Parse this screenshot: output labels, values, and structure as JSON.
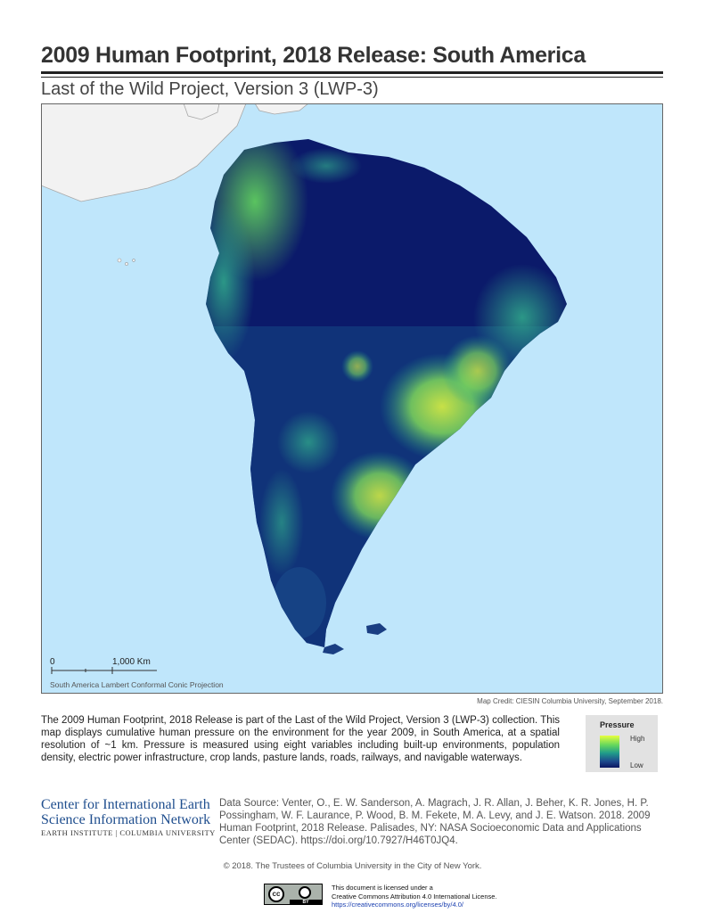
{
  "header": {
    "title": "2009 Human Footprint, 2018 Release: South America",
    "subtitle": "Last of the Wild Project, Version 3 (LWP-3)"
  },
  "map": {
    "colors": {
      "ocean": "#bfe6fb",
      "low": "#0b1560",
      "mid": "#1f6f9a",
      "high": "#e8ff3e",
      "land_other": "#f2f2f2"
    },
    "scale_bar": {
      "start": "0",
      "end": "1,000 Km"
    },
    "projection": "South America Lambert Conformal Conic Projection"
  },
  "credit": "Map Credit: CIESIN Columbia University, September 2018.",
  "description": "The 2009 Human Footprint, 2018 Release is part of the Last of the Wild Project, Version 3 (LWP-3) collection. This map displays cumulative human pressure on the environment for the year 2009, in South America, at a spatial resolution of ~1 km. Pressure is measured using eight variables including built-up environments, population density, electric power infrastructure, crop lands, pasture lands, roads, railways, and navigable waterways.",
  "legend": {
    "title": "Pressure",
    "high": "High",
    "low": "Low"
  },
  "organization": {
    "line1": "Center for International Earth",
    "line2": "Science Information Network",
    "sub": "EARTH INSTITUTE | COLUMBIA UNIVERSITY"
  },
  "data_source": "Data Source: Venter, O., E. W. Sanderson, A. Magrach, J. R. Allan, J. Beher, K. R. Jones, H. P. Possingham, W. F. Laurance, P. Wood, B. M. Fekete, M. A. Levy, and J. E. Watson. 2018. 2009 Human Footprint, 2018 Release. Palisades, NY: NASA Socioeconomic Data and Applications Center (SEDAC). https://doi.org/10.7927/H46T0JQ4.",
  "copyright": "© 2018. The Trustees of Columbia University in the City of New York.",
  "license": {
    "line1": "This document is licensed under a",
    "line2": "Creative Commons Attribution 4.0 International License.",
    "url": "https://creativecommons.org/licenses/by/4.0/",
    "badge_cc": "cc",
    "badge_by": "BY"
  }
}
